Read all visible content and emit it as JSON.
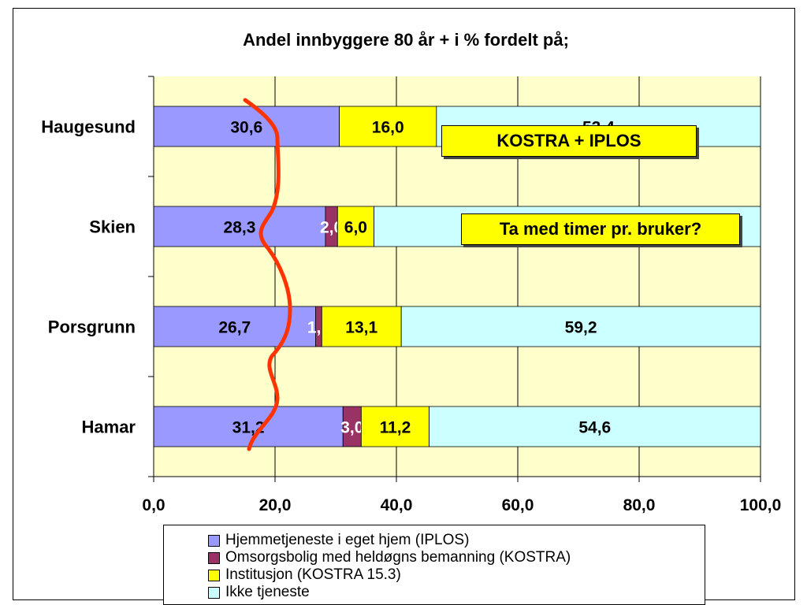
{
  "chart_data": {
    "type": "bar",
    "orientation": "horizontal",
    "stacked": true,
    "title": "Andel innbyggere 80 år + i % fordelt på;",
    "categories": [
      "Haugesund",
      "Skien",
      "Porsgrunn",
      "Hamar"
    ],
    "series": [
      {
        "name": "Hjemmetjeneste i eget hjem (IPLOS)",
        "color": "#9999ff",
        "values": [
          30.6,
          28.3,
          26.7,
          31.2
        ],
        "labels": [
          "30,6",
          "28,3",
          "26,7",
          "31,2"
        ],
        "label_color": "#000000"
      },
      {
        "name": "Omsorgsbolig med heldøgns bemanning (KOSTRA)",
        "color": "#993366",
        "values": [
          0,
          2.0,
          1.0,
          3.0
        ],
        "labels": [
          "",
          "2,0",
          "1,0",
          "3,0"
        ],
        "label_color": "#ffffff"
      },
      {
        "name": "Institusjon (KOSTRA 15.3)",
        "color": "#ffff00",
        "values": [
          16.0,
          6.0,
          13.1,
          11.2
        ],
        "labels": [
          "16,0",
          "6,0",
          "13,1",
          "11,2"
        ],
        "label_color": "#000000"
      },
      {
        "name": "Ikke tjeneste",
        "color": "#ccffff",
        "values": [
          53.4,
          63.7,
          59.2,
          54.6
        ],
        "labels": [
          "53,4",
          "",
          "59,2",
          "54,6"
        ],
        "label_color": "#000000"
      }
    ],
    "x_ticks": [
      "0,0",
      "20,0",
      "40,0",
      "60,0",
      "80,0",
      "100,0"
    ],
    "xlim": [
      0,
      100
    ],
    "grid": true,
    "plot_background": "#ffffcc",
    "legend_position": "bottom",
    "annotations": [
      "KOSTRA + IPLOS",
      "Ta med timer pr. bruker?"
    ],
    "hand_drawn_line_color": "#ff3300"
  }
}
